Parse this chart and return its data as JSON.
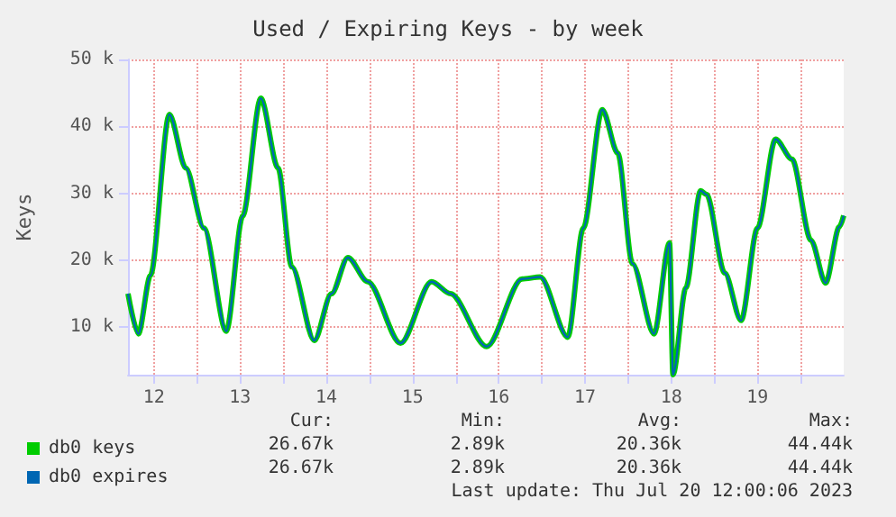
{
  "chart_data": {
    "type": "line",
    "title": "Used / Expiring Keys - by week",
    "ylabel": "Keys",
    "x": [
      12.2,
      12.32,
      12.46,
      12.68,
      12.87,
      13.08,
      13.34,
      13.53,
      13.74,
      13.94,
      14.1,
      14.36,
      14.56,
      14.75,
      14.98,
      15.36,
      15.72,
      15.94,
      16.36,
      16.77,
      16.98,
      17.3,
      17.48,
      17.7,
      17.88,
      18.05,
      18.3,
      18.48,
      18.52,
      18.67,
      18.84,
      18.91,
      19.12,
      19.31,
      19.5,
      19.71,
      19.9,
      20.12,
      20.29,
      20.45,
      20.5
    ],
    "series": [
      {
        "name": "db0 keys",
        "color": "#00cc00",
        "values": [
          15000,
          9000,
          17700,
          41800,
          33800,
          24800,
          9400,
          26600,
          44200,
          33800,
          19000,
          8000,
          15000,
          20400,
          16800,
          7600,
          16800,
          15000,
          7100,
          17200,
          17500,
          8500,
          24800,
          42500,
          36000,
          19500,
          9000,
          22600,
          2900,
          15900,
          30400,
          29800,
          18100,
          11000,
          24800,
          38100,
          35100,
          23000,
          16600,
          25000,
          26670
        ]
      },
      {
        "name": "db0 expires",
        "color": "#0066b3",
        "values": [
          15000,
          9000,
          17700,
          41800,
          33800,
          24800,
          9400,
          26600,
          44200,
          33800,
          19000,
          8000,
          15000,
          20400,
          16800,
          7600,
          16800,
          15000,
          7100,
          17200,
          17500,
          8500,
          24800,
          42500,
          36000,
          19500,
          9000,
          22600,
          2900,
          15900,
          30400,
          29800,
          18100,
          11000,
          24800,
          38100,
          35100,
          23000,
          16600,
          25000,
          26670
        ]
      }
    ],
    "xlim": [
      12.2,
      20.5
    ],
    "xticks": [
      {
        "value": 12.5,
        "label": "12"
      },
      {
        "value": 13,
        "label": null
      },
      {
        "value": 13.5,
        "label": "13"
      },
      {
        "value": 14,
        "label": null
      },
      {
        "value": 14.5,
        "label": "14"
      },
      {
        "value": 15,
        "label": null
      },
      {
        "value": 15.5,
        "label": "15"
      },
      {
        "value": 16,
        "label": null
      },
      {
        "value": 16.5,
        "label": "16"
      },
      {
        "value": 17,
        "label": null
      },
      {
        "value": 17.5,
        "label": "17"
      },
      {
        "value": 18,
        "label": null
      },
      {
        "value": 18.5,
        "label": "18"
      },
      {
        "value": 19,
        "label": null
      },
      {
        "value": 19.5,
        "label": "19"
      },
      {
        "value": 20,
        "label": null
      }
    ],
    "ylim": [
      2900,
      50000
    ],
    "yticks": [
      {
        "value": 10000,
        "label": "10 k"
      },
      {
        "value": 20000,
        "label": "20 k"
      },
      {
        "value": 30000,
        "label": "30 k"
      },
      {
        "value": 40000,
        "label": "40 k"
      },
      {
        "value": 50000,
        "label": "50 k"
      }
    ],
    "grid": true,
    "legend": "bottom left",
    "marker": "none",
    "line_style": "solid",
    "annotations": [
      "Cur:",
      "Min:",
      "Avg:",
      "Max:",
      "26.67k",
      "2.89k",
      "20.36k",
      "44.44k",
      "26.67k",
      "2.89k",
      "20.36k",
      "44.44k",
      "Last update: Thu Jul 20 12:00:06 2023"
    ]
  }
}
